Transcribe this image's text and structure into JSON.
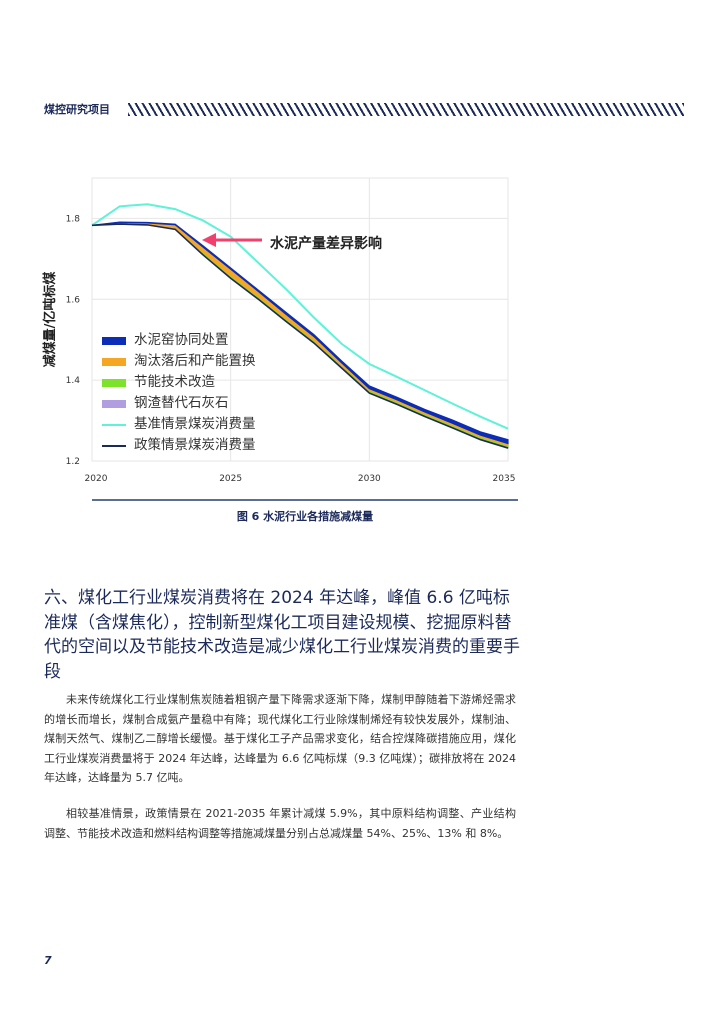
{
  "header": {
    "title": "煤控研究项目"
  },
  "chart_data": {
    "type": "area",
    "title": "图6 水泥行业各措施减煤量",
    "xlabel": "",
    "ylabel": "减煤量/亿吨标煤",
    "x": [
      2020,
      2021,
      2022,
      2023,
      2024,
      2025,
      2026,
      2027,
      2028,
      2029,
      2030,
      2031,
      2032,
      2033,
      2034,
      2035
    ],
    "ylim": [
      1.2,
      1.9
    ],
    "yticks": [
      1.2,
      1.4,
      1.6,
      1.8
    ],
    "xticks": [
      2020,
      2025,
      2030,
      2035
    ],
    "grid": true,
    "legend_position": "left-center inside",
    "series": [
      {
        "name": "基准情景煤炭消费量",
        "kind": "line",
        "color": "#5ef2d8",
        "values": [
          1.783,
          1.83,
          1.835,
          1.823,
          1.795,
          1.755,
          1.69,
          1.625,
          1.555,
          1.49,
          1.44,
          1.408,
          1.375,
          1.342,
          1.31,
          1.28
        ]
      },
      {
        "name": "政策情景煤炭消费量",
        "kind": "line",
        "color": "#1c2a5a",
        "values": [
          1.783,
          1.786,
          1.784,
          1.773,
          1.71,
          1.652,
          1.6,
          1.545,
          1.492,
          1.43,
          1.368,
          1.34,
          1.31,
          1.282,
          1.253,
          1.232
        ]
      },
      {
        "name": "钢渣替代石灰石",
        "kind": "stack",
        "color": "#b09ee0",
        "values": [
          0,
          0.001,
          0.001,
          0.001,
          0.002,
          0.002,
          0.002,
          0.002,
          0.002,
          0.002,
          0.002,
          0.002,
          0.002,
          0.002,
          0.002,
          0.002
        ]
      },
      {
        "name": "节能技术改造",
        "kind": "stack",
        "color": "#7de22a",
        "values": [
          0,
          0.001,
          0.001,
          0.001,
          0.002,
          0.002,
          0.002,
          0.002,
          0.002,
          0.002,
          0.002,
          0.002,
          0.002,
          0.002,
          0.002,
          0.002
        ]
      },
      {
        "name": "淘汰落后和产能置换",
        "kind": "stack",
        "color": "#f5a623",
        "values": [
          0,
          0.002,
          0.003,
          0.005,
          0.008,
          0.01,
          0.008,
          0.007,
          0.006,
          0.004,
          0.003,
          0.003,
          0.003,
          0.003,
          0.003,
          0.003
        ]
      },
      {
        "name": "水泥窑协同处置",
        "kind": "stack",
        "color": "#0b2db8",
        "values": [
          0,
          0.001,
          0.001,
          0.001,
          0.002,
          0.002,
          0.002,
          0.003,
          0.003,
          0.003,
          0.004,
          0.004,
          0.004,
          0.005,
          0.005,
          0.006
        ]
      }
    ],
    "annotations": [
      {
        "text": "水泥产量差异影响",
        "arrow_color": "#f0406e"
      }
    ]
  },
  "chart": {
    "ylabel": "减煤量/亿吨标煤",
    "yticks": [
      "1.2",
      "1.4",
      "1.6",
      "1.8"
    ],
    "xticks": [
      "2020",
      "2025",
      "2030",
      "2035"
    ],
    "annotation": "水泥产量差异影响",
    "legend": [
      {
        "label": "水泥窑协同处置",
        "color": "#0b2db8",
        "type": "box"
      },
      {
        "label": "淘汰落后和产能置换",
        "color": "#f5a623",
        "type": "box"
      },
      {
        "label": "节能技术改造",
        "color": "#7de22a",
        "type": "box"
      },
      {
        "label": "钢渣替代石灰石",
        "color": "#b09ee0",
        "type": "box"
      },
      {
        "label": "基准情景煤炭消费量",
        "color": "#5ef2d8",
        "type": "line"
      },
      {
        "label": "政策情景煤炭消费量",
        "color": "#1c2a5a",
        "type": "line"
      }
    ]
  },
  "caption": "图 6  水泥行业各措施减煤量",
  "section": {
    "title": "六、煤化工行业煤炭消费将在 2024 年达峰，峰值 6.6 亿吨标准煤（含煤焦化），控制新型煤化工项目建设规模、挖掘原料替代的空间以及节能技术改造是减少煤化工行业煤炭消费的重要手段"
  },
  "paragraphs": [
    "未来传统煤化工行业煤制焦炭随着粗钢产量下降需求逐渐下降，煤制甲醇随着下游烯烃需求的增长而增长，煤制合成氨产量稳中有降；现代煤化工行业除煤制烯烃有较快发展外，煤制油、煤制天然气、煤制乙二醇增长缓慢。基于煤化工子产品需求变化，结合控煤降碳措施应用，煤化工行业煤炭消费量将于 2024 年达峰，达峰量为 6.6 亿吨标煤（9.3 亿吨煤）；碳排放将在 2024 年达峰，达峰量为 5.7 亿吨。",
    "相较基准情景，政策情景在 2021-2035 年累计减煤 5.9%，其中原料结构调整、产业结构调整、节能技术改造和燃料结构调整等措施减煤量分别占总减煤量 54%、25%、13% 和 8%。"
  ],
  "page_number": "7"
}
